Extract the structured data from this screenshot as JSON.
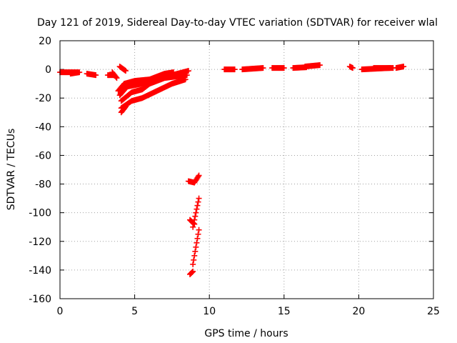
{
  "chart_data": {
    "type": "scatter",
    "title": "Day 121 of 2019, Sidereal Day-to-day VTEC variation (SDTVAR) for receiver wlal",
    "xlabel": "GPS time / hours",
    "ylabel": "SDTVAR / TECUs",
    "xlim": [
      0,
      25
    ],
    "ylim": [
      -160,
      20
    ],
    "xticks": [
      0,
      5,
      10,
      15,
      20,
      25
    ],
    "yticks": [
      -160,
      -140,
      -120,
      -100,
      -80,
      -60,
      -40,
      -20,
      0,
      20
    ],
    "grid": true,
    "marker": "+",
    "color": "#ff0000",
    "segments": [
      {
        "x": [
          0.0,
          1.2
        ],
        "y": [
          -2,
          -2
        ]
      },
      {
        "x": [
          0.7,
          1.3
        ],
        "y": [
          -3,
          -2
        ]
      },
      {
        "x": [
          1.8,
          2.4
        ],
        "y": [
          -3,
          -4
        ]
      },
      {
        "x": [
          3.2,
          3.6
        ],
        "y": [
          -4,
          -4
        ]
      },
      {
        "x": [
          3.5,
          3.8
        ],
        "y": [
          -2,
          -6
        ]
      },
      {
        "x": [
          4.0,
          4.4
        ],
        "y": [
          2,
          -1
        ]
      },
      {
        "x": [
          3.9,
          4.3,
          5.0,
          6.0,
          6.5,
          7.0,
          7.6
        ],
        "y": [
          -15,
          -10,
          -8,
          -7,
          -5,
          -3,
          -2
        ]
      },
      {
        "x": [
          4.0,
          4.5,
          5.5,
          6.5,
          7.5,
          8.6
        ],
        "y": [
          -18,
          -12,
          -10,
          -7,
          -4,
          -1
        ]
      },
      {
        "x": [
          4.1,
          4.8,
          5.5,
          6.0,
          7.0,
          8.5
        ],
        "y": [
          -22,
          -16,
          -14,
          -10,
          -6,
          -4
        ]
      },
      {
        "x": [
          4.1,
          4.8,
          5.5,
          6.3,
          7.5,
          8.4
        ],
        "y": [
          -27,
          -22,
          -20,
          -16,
          -10,
          -7
        ]
      },
      {
        "x": [
          4.1,
          4.4
        ],
        "y": [
          -30,
          -26
        ]
      },
      {
        "x": [
          8.6,
          9.0,
          9.3
        ],
        "y": [
          -78,
          -79,
          -74
        ]
      },
      {
        "x": [
          8.7,
          9.0
        ],
        "y": [
          -105,
          -108
        ]
      },
      {
        "x": [
          8.9,
          9.1,
          9.3
        ],
        "y": [
          -110,
          -100,
          -90
        ]
      },
      {
        "x": [
          8.7,
          8.9
        ],
        "y": [
          -143,
          -141
        ]
      },
      {
        "x": [
          8.9,
          9.1,
          9.3
        ],
        "y": [
          -136,
          -124,
          -112
        ]
      },
      {
        "x": [
          11.0,
          11.7
        ],
        "y": [
          0,
          0
        ]
      },
      {
        "x": [
          12.2,
          13.6
        ],
        "y": [
          0,
          1
        ]
      },
      {
        "x": [
          14.2,
          15.0
        ],
        "y": [
          1,
          1
        ]
      },
      {
        "x": [
          15.6,
          16.5
        ],
        "y": [
          1,
          1.5
        ]
      },
      {
        "x": [
          16.4,
          17.4
        ],
        "y": [
          2,
          3
        ]
      },
      {
        "x": [
          19.4,
          19.6
        ],
        "y": [
          2,
          1
        ]
      },
      {
        "x": [
          20.2,
          22.1
        ],
        "y": [
          0,
          1
        ]
      },
      {
        "x": [
          21.0,
          22.3
        ],
        "y": [
          1,
          1
        ]
      },
      {
        "x": [
          22.5,
          23.0
        ],
        "y": [
          1,
          2
        ]
      }
    ]
  }
}
